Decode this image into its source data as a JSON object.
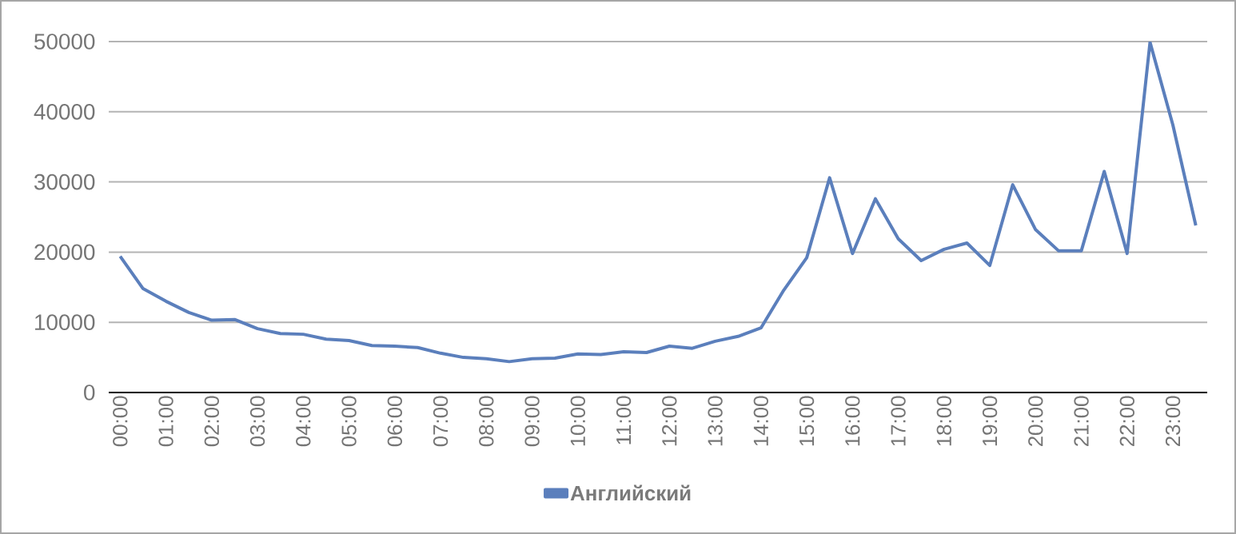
{
  "chart_data": {
    "type": "line",
    "categories": [
      "00:00",
      null,
      "01:00",
      null,
      "02:00",
      null,
      "03:00",
      null,
      "04:00",
      null,
      "05:00",
      null,
      "06:00",
      null,
      "07:00",
      null,
      "08:00",
      null,
      "09:00",
      null,
      "10:00",
      null,
      "11:00",
      null,
      "12:00",
      null,
      "13:00",
      null,
      "14:00",
      null,
      "15:00",
      null,
      "16:00",
      null,
      "17:00",
      null,
      "18:00",
      null,
      "19:00",
      null,
      "20:00",
      null,
      "21:00",
      null,
      "22:00",
      null,
      "23:00",
      null
    ],
    "series": [
      {
        "name": "Английский",
        "color": "#5b7fbc",
        "values": [
          19400,
          14800,
          13000,
          11400,
          10300,
          10400,
          9100,
          8400,
          8300,
          7600,
          7400,
          6700,
          6600,
          6400,
          5600,
          5000,
          4800,
          4400,
          4800,
          4900,
          5500,
          5400,
          5800,
          5700,
          6600,
          6300,
          7300,
          8000,
          9200,
          14600,
          19200,
          30600,
          19800,
          27600,
          21900,
          18800,
          20400,
          21300,
          18100,
          29600,
          23200,
          20200,
          20200,
          31500,
          19800,
          49900,
          38100,
          23800
        ]
      }
    ],
    "ylim": [
      0,
      50000
    ],
    "yticks": [
      0,
      10000,
      20000,
      30000,
      40000,
      50000
    ],
    "grid": "y",
    "legend": "bottom",
    "marker": "none",
    "line_style": "solid"
  }
}
